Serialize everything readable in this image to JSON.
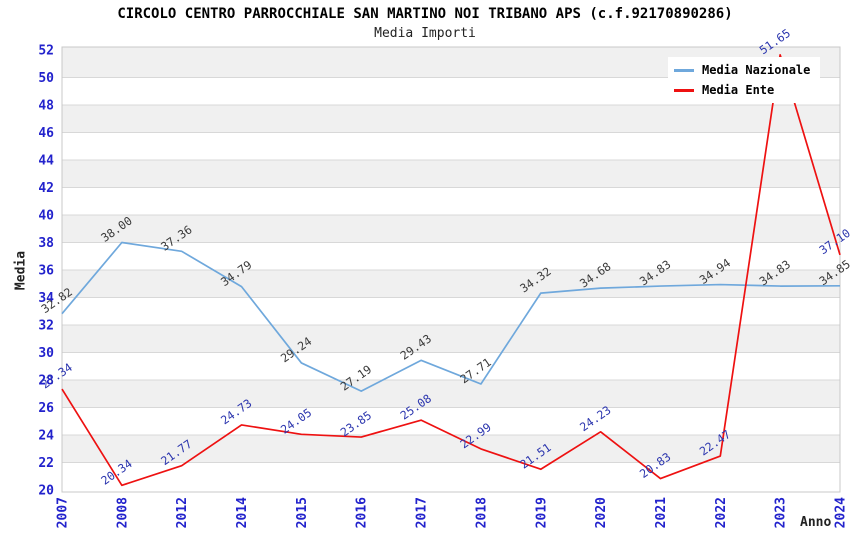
{
  "title": "CIRCOLO CENTRO PARROCCHIALE SAN MARTINO NOI TRIBANO APS (c.f.92170890286)",
  "subtitle": "Media Importi",
  "legend": {
    "items": [
      "Media Nazionale",
      "Media Ente"
    ]
  },
  "chart_data": {
    "type": "line",
    "title": "Media Importi",
    "xlabel": "Anno",
    "ylabel": "Media",
    "categories": [
      "2007",
      "2008",
      "2012",
      "2014",
      "2015",
      "2016",
      "2017",
      "2018",
      "2019",
      "2020",
      "2021",
      "2022",
      "2023",
      "2024"
    ],
    "series": [
      {
        "name": "Media Nazionale",
        "color": "#6FA8DC",
        "label_color": "#3A3A3A",
        "values": [
          32.82,
          38.0,
          37.36,
          34.79,
          29.24,
          27.19,
          29.43,
          27.71,
          34.32,
          34.68,
          34.83,
          34.94,
          34.83,
          34.85
        ]
      },
      {
        "name": "Media Ente",
        "color": "#EE1111",
        "label_color": "#2B35AE",
        "values": [
          27.34,
          20.34,
          21.77,
          24.73,
          24.05,
          23.85,
          25.08,
          22.99,
          21.51,
          24.23,
          20.83,
          22.47,
          51.65,
          37.1
        ]
      }
    ],
    "ylim": [
      20,
      52
    ],
    "ytick_step": 2,
    "grid": "horizontal-alternating-bands",
    "legend_position": "top-right",
    "colors": {
      "tick_text": "#2222CC",
      "band_gray": "#F0F0F0",
      "grid_line": "#D8D8D8",
      "plot_border": "#C8C8C8"
    }
  }
}
